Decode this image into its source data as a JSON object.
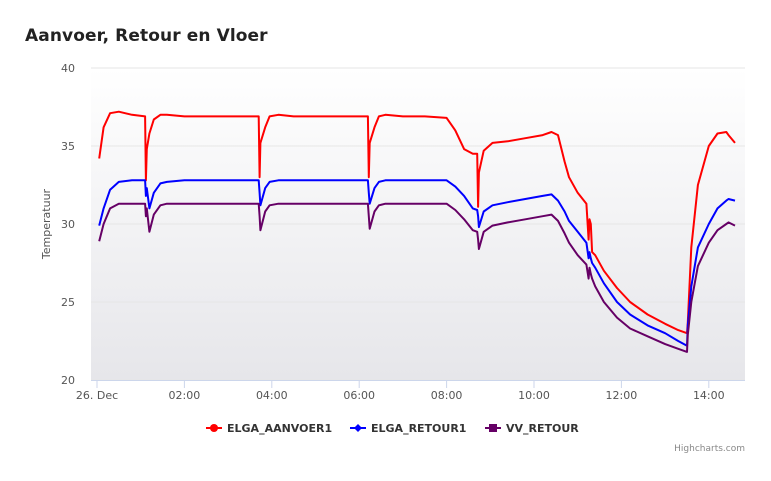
{
  "title": "Aanvoer, Retour en Vloer",
  "credits": "Highcharts.com",
  "menu_icon": "hamburger-menu-icon",
  "chart_data": {
    "type": "line",
    "title": "Aanvoer, Retour en Vloer",
    "ylabel": "Temperatuur",
    "xlabel": "",
    "ylim": [
      20,
      40
    ],
    "yticks": [
      20,
      25,
      30,
      35,
      40
    ],
    "x_unit": "hours",
    "xlim": [
      0,
      14.75
    ],
    "xticks": [
      {
        "x": 0,
        "label": "26. Dec"
      },
      {
        "x": 2,
        "label": "02:00"
      },
      {
        "x": 4,
        "label": "04:00"
      },
      {
        "x": 6,
        "label": "06:00"
      },
      {
        "x": 8,
        "label": "08:00"
      },
      {
        "x": 10,
        "label": "10:00"
      },
      {
        "x": 12,
        "label": "12:00"
      },
      {
        "x": 14,
        "label": "14:00"
      }
    ],
    "grid": true,
    "legend_position": "bottom",
    "series": [
      {
        "name": "ELGA_AANVOER1",
        "color": "#ff0000",
        "marker": "circle",
        "x": [
          0.05,
          0.15,
          0.3,
          0.5,
          0.8,
          1.1,
          1.12,
          1.14,
          1.2,
          1.3,
          1.45,
          1.6,
          2.0,
          2.5,
          3.0,
          3.5,
          3.7,
          3.72,
          3.74,
          3.85,
          3.95,
          4.15,
          4.5,
          5.0,
          5.5,
          6.2,
          6.22,
          6.24,
          6.35,
          6.45,
          6.6,
          7.0,
          7.5,
          8.0,
          8.2,
          8.4,
          8.6,
          8.7,
          8.72,
          8.74,
          8.85,
          9.05,
          9.4,
          9.8,
          10.2,
          10.4,
          10.55,
          10.7,
          10.8,
          11.0,
          11.2,
          11.25,
          11.27,
          11.3,
          11.33,
          11.4,
          11.6,
          11.9,
          12.2,
          12.6,
          13.0,
          13.3,
          13.5,
          13.52,
          13.6,
          13.75,
          14.0,
          14.2,
          14.4,
          14.45,
          14.6
        ],
        "y": [
          34.2,
          36.2,
          37.1,
          37.2,
          37.0,
          36.9,
          32.8,
          34.8,
          35.8,
          36.7,
          37.0,
          37.0,
          36.9,
          36.9,
          36.9,
          36.9,
          36.9,
          33.0,
          35.2,
          36.2,
          36.9,
          37.0,
          36.9,
          36.9,
          36.9,
          36.9,
          33.0,
          35.2,
          36.2,
          36.9,
          37.0,
          36.9,
          36.9,
          36.8,
          36.0,
          34.8,
          34.5,
          34.5,
          31.1,
          33.3,
          34.7,
          35.2,
          35.3,
          35.5,
          35.7,
          35.9,
          35.7,
          34.0,
          33.0,
          32.0,
          31.3,
          29.0,
          30.3,
          30.0,
          28.2,
          28.0,
          27.0,
          25.9,
          25.0,
          24.2,
          23.6,
          23.2,
          23.0,
          23.7,
          28.5,
          32.5,
          35.0,
          35.8,
          35.9,
          35.7,
          35.2
        ]
      },
      {
        "name": "ELGA_RETOUR1",
        "color": "#0000ff",
        "marker": "diamond",
        "x": [
          0.05,
          0.15,
          0.3,
          0.5,
          0.8,
          1.1,
          1.12,
          1.14,
          1.2,
          1.3,
          1.45,
          1.6,
          2.0,
          2.5,
          3.0,
          3.5,
          3.7,
          3.72,
          3.74,
          3.85,
          3.95,
          4.15,
          4.5,
          5.0,
          5.5,
          6.2,
          6.22,
          6.24,
          6.35,
          6.45,
          6.6,
          7.0,
          7.5,
          8.0,
          8.2,
          8.4,
          8.6,
          8.7,
          8.72,
          8.74,
          8.85,
          9.05,
          9.4,
          9.8,
          10.2,
          10.4,
          10.55,
          10.7,
          10.8,
          11.0,
          11.2,
          11.25,
          11.27,
          11.3,
          11.33,
          11.4,
          11.6,
          11.9,
          12.2,
          12.6,
          13.0,
          13.3,
          13.5,
          13.52,
          13.6,
          13.75,
          14.0,
          14.2,
          14.4,
          14.45,
          14.6
        ],
        "y": [
          29.9,
          31.0,
          32.2,
          32.7,
          32.8,
          32.8,
          31.8,
          32.3,
          31.0,
          32.0,
          32.6,
          32.7,
          32.8,
          32.8,
          32.8,
          32.8,
          32.8,
          32.0,
          31.2,
          32.3,
          32.7,
          32.8,
          32.8,
          32.8,
          32.8,
          32.8,
          32.0,
          31.3,
          32.3,
          32.7,
          32.8,
          32.8,
          32.8,
          32.8,
          32.4,
          31.8,
          31.0,
          30.9,
          30.5,
          29.8,
          30.8,
          31.2,
          31.4,
          31.6,
          31.8,
          31.9,
          31.5,
          30.8,
          30.2,
          29.5,
          28.8,
          27.8,
          28.2,
          27.8,
          27.5,
          27.2,
          26.2,
          25.0,
          24.2,
          23.5,
          23.0,
          22.5,
          22.2,
          23.5,
          26.0,
          28.5,
          30.0,
          31.0,
          31.5,
          31.6,
          31.5
        ]
      },
      {
        "name": "VV_RETOUR",
        "color": "#660066",
        "marker": "square",
        "x": [
          0.05,
          0.15,
          0.3,
          0.5,
          0.8,
          1.1,
          1.12,
          1.14,
          1.2,
          1.3,
          1.45,
          1.6,
          2.0,
          2.5,
          3.0,
          3.5,
          3.7,
          3.72,
          3.74,
          3.85,
          3.95,
          4.15,
          4.5,
          5.0,
          5.5,
          6.2,
          6.22,
          6.24,
          6.35,
          6.45,
          6.6,
          7.0,
          7.5,
          8.0,
          8.2,
          8.4,
          8.6,
          8.7,
          8.72,
          8.74,
          8.85,
          9.05,
          9.4,
          9.8,
          10.2,
          10.4,
          10.55,
          10.7,
          10.8,
          11.0,
          11.2,
          11.25,
          11.27,
          11.3,
          11.33,
          11.4,
          11.6,
          11.9,
          12.2,
          12.6,
          13.0,
          13.3,
          13.5,
          13.52,
          13.6,
          13.75,
          14.0,
          14.2,
          14.4,
          14.45,
          14.6
        ],
        "y": [
          28.9,
          30.0,
          31.0,
          31.3,
          31.3,
          31.3,
          30.5,
          31.0,
          29.5,
          30.6,
          31.2,
          31.3,
          31.3,
          31.3,
          31.3,
          31.3,
          31.3,
          30.5,
          29.6,
          30.8,
          31.2,
          31.3,
          31.3,
          31.3,
          31.3,
          31.3,
          30.5,
          29.7,
          30.8,
          31.2,
          31.3,
          31.3,
          31.3,
          31.3,
          30.9,
          30.3,
          29.6,
          29.5,
          29.0,
          28.4,
          29.5,
          29.9,
          30.1,
          30.3,
          30.5,
          30.6,
          30.2,
          29.4,
          28.8,
          28.0,
          27.4,
          26.5,
          27.2,
          26.8,
          26.5,
          26.0,
          25.0,
          24.0,
          23.3,
          22.8,
          22.3,
          22.0,
          21.8,
          22.9,
          25.0,
          27.3,
          28.8,
          29.6,
          30.0,
          30.1,
          29.9
        ]
      }
    ]
  }
}
